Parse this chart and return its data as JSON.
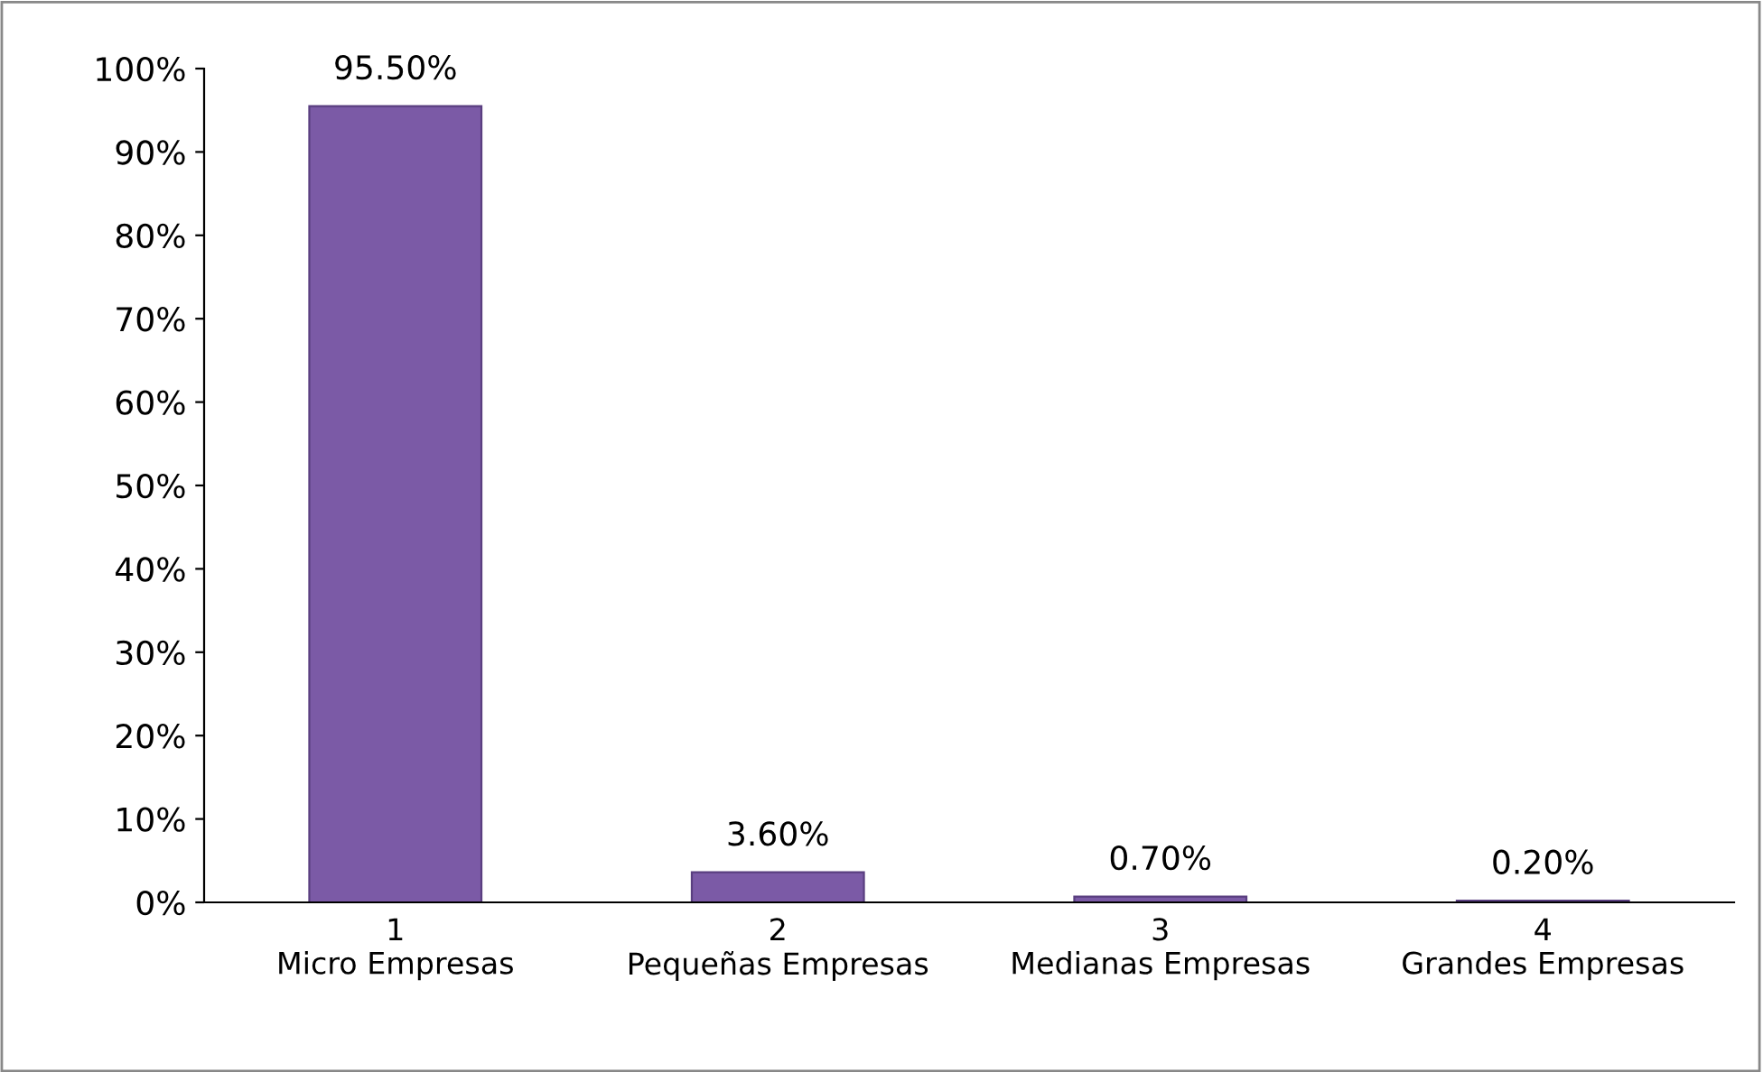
{
  "chart_data": {
    "type": "bar",
    "categories": [
      "1\nMicro Empresas",
      "2\nPequeñas Empresas",
      "3\nMedianas Empresas",
      "4\nGrandes Empresas"
    ],
    "values": [
      95.5,
      3.6,
      0.7,
      0.2
    ],
    "color": "#7b5aa6",
    "value_labels": [
      "95.50%",
      "3.60%",
      "0.70%",
      "0.20%"
    ],
    "ylim": [
      0,
      100
    ],
    "yticks": [
      {
        "value": 0,
        "label": "0%"
      },
      {
        "value": 10,
        "label": "10%"
      },
      {
        "value": 20,
        "label": "20%"
      },
      {
        "value": 30,
        "label": "30%"
      },
      {
        "value": 40,
        "label": "40%"
      },
      {
        "value": 50,
        "label": "50%"
      },
      {
        "value": 60,
        "label": "60%"
      },
      {
        "value": 70,
        "label": "70%"
      },
      {
        "value": 80,
        "label": "80%"
      },
      {
        "value": 90,
        "label": "90%"
      },
      {
        "value": 100,
        "label": "100%"
      }
    ],
    "grid": false,
    "legend": false
  }
}
